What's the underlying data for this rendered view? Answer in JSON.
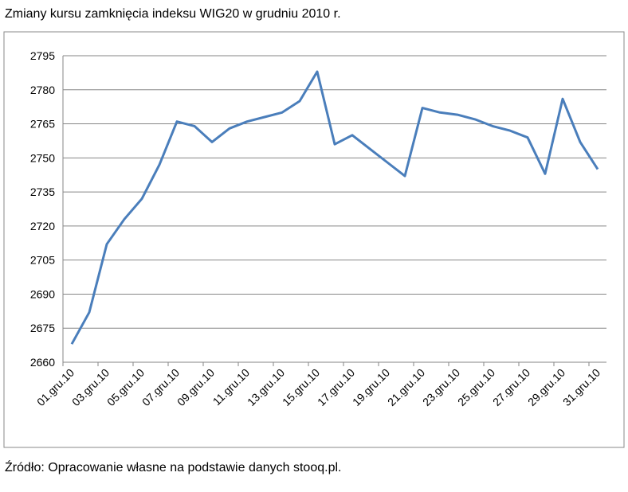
{
  "chart_data": {
    "type": "line",
    "title": "Zmiany kursu zamknięcia indeksu WIG20 w grudniu 2010 r.",
    "source": "Źródło: Opracowanie własne na podstawie danych stooq.pl.",
    "categories": [
      "01.gru.10",
      null,
      "03.gru.10",
      null,
      "05.gru.10",
      null,
      "07.gru.10",
      null,
      "09.gru.10",
      null,
      "11.gru.10",
      null,
      "13.gru.10",
      null,
      "15.gru.10",
      null,
      "17.gru.10",
      null,
      "19.gru.10",
      null,
      "21.gru.10",
      null,
      "23.gru.10",
      null,
      "25.gru.10",
      null,
      "27.gru.10",
      null,
      "29.gru.10",
      null,
      "31.gru.10"
    ],
    "values": [
      2668,
      2682,
      2712,
      2723,
      2732,
      2747,
      2766,
      2764,
      2757,
      2763,
      2766,
      2768,
      2770,
      2775,
      2788,
      2756,
      2760,
      2754,
      2748,
      2742,
      2772,
      2770,
      2769,
      2767,
      2764,
      2762,
      2759,
      2743,
      2776,
      2757,
      2745
    ],
    "color": "#4a7ebb",
    "ylim": [
      2660,
      2795
    ],
    "yticks": [
      2660,
      2675,
      2690,
      2705,
      2720,
      2735,
      2750,
      2765,
      2780,
      2795
    ],
    "grid": true
  }
}
